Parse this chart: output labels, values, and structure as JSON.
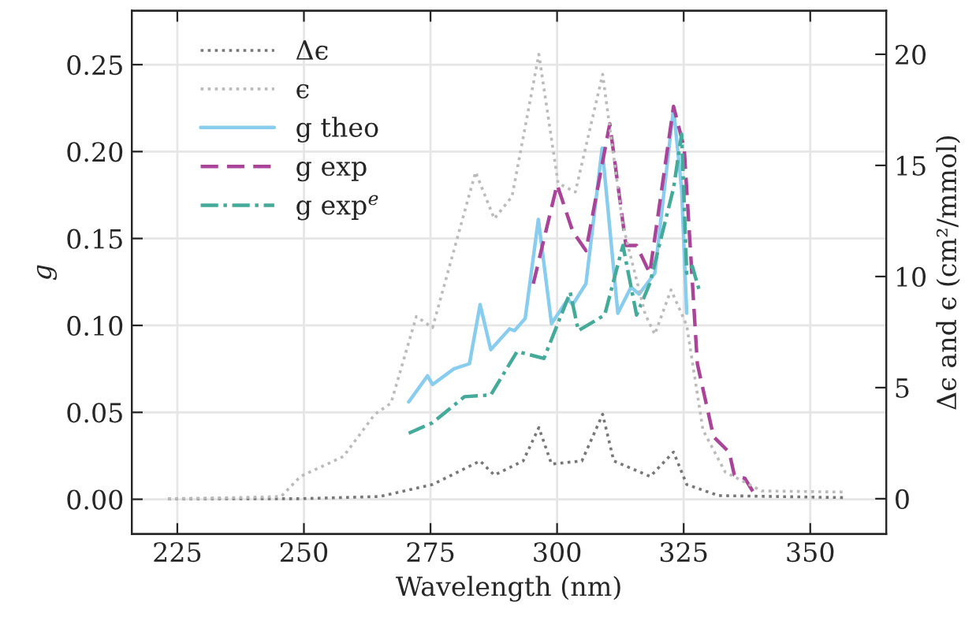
{
  "chart_data": {
    "type": "line",
    "xlabel": "Wavelength (nm)",
    "ylabel": "g",
    "y2label": "Δϵ and ϵ (cm²/mmol)",
    "xlim": [
      216,
      365
    ],
    "xticks": [
      225,
      250,
      275,
      300,
      325,
      350
    ],
    "ylim": [
      -0.02,
      0.281
    ],
    "yticks": [
      {
        "value": 0,
        "label": "0.00"
      },
      {
        "value": 0.05,
        "label": "0.05"
      },
      {
        "value": 0.1,
        "label": "0.10"
      },
      {
        "value": 0.15,
        "label": "0.15"
      },
      {
        "value": 0.2,
        "label": "0.20"
      },
      {
        "value": 0.25,
        "label": "0.25"
      }
    ],
    "y2lim": [
      -1.59,
      21.96
    ],
    "y2ticks": [
      0,
      5,
      10,
      15,
      20
    ],
    "grid": true,
    "legend": "top left",
    "series": [
      {
        "name": "Δϵ",
        "color": "#777777",
        "axis": "y2",
        "line_style": "dotted",
        "x": [
          223.2,
          249.3,
          265,
          275.4,
          284.8,
          287.6,
          293.3,
          296.4,
          298.9,
          304.9,
          309,
          311.2,
          318.4,
          323,
          325.6,
          331.9,
          356.7
        ],
        "values": [
          0,
          0,
          0.1,
          0.64,
          1.7,
          1.06,
          1.7,
          3.2,
          1.56,
          1.7,
          3.8,
          1.7,
          1.0,
          2.1,
          0.64,
          0.14,
          0.05
        ]
      },
      {
        "name": "ϵ",
        "color": "#bbbbbb",
        "axis": "y2",
        "line_style": "dotted",
        "x": [
          223.2,
          236.7,
          245.5,
          249.3,
          257.8,
          264,
          267.2,
          272.2,
          275.4,
          283.9,
          287.6,
          291.1,
          296.4,
          300.2,
          303.6,
          309,
          313,
          317.4,
          319.3,
          322.5,
          325.6,
          328.8,
          333.2,
          340.4,
          356.7
        ],
        "values": [
          0,
          0.05,
          0.1,
          1.0,
          1.9,
          3.8,
          4.3,
          8.2,
          7.7,
          14.7,
          12.6,
          13.6,
          20.0,
          14.2,
          13.8,
          19.1,
          12.3,
          8.3,
          7.4,
          9.4,
          7.8,
          3.1,
          1.2,
          0.35,
          0.3
        ]
      },
      {
        "name": "g theo",
        "color": "#88ccee",
        "line_style": "solid",
        "x": [
          270.7,
          274.4,
          275.4,
          279.6,
          282.7,
          284.8,
          286.9,
          290.6,
          291.6,
          293.7,
          296.3,
          298.9,
          302.1,
          303.1,
          305.7,
          308.9,
          312,
          314.6,
          316.2,
          319.3,
          323,
          324.6,
          325.6
        ],
        "values": [
          0.056,
          0.071,
          0.066,
          0.075,
          0.078,
          0.112,
          0.086,
          0.098,
          0.097,
          0.104,
          0.161,
          0.101,
          0.115,
          0.112,
          0.124,
          0.202,
          0.107,
          0.122,
          0.118,
          0.13,
          0.225,
          0.178,
          0.107
        ]
      },
      {
        "name": "g exp",
        "color": "#aa4499",
        "line_style": "dashed",
        "x": [
          295.3,
          300,
          303.1,
          305.7,
          310.4,
          313.6,
          315.7,
          318.3,
          323,
          325.1,
          327.7,
          330.9,
          334,
          335,
          337.1,
          339.2
        ],
        "values": [
          0.124,
          0.181,
          0.154,
          0.143,
          0.216,
          0.146,
          0.146,
          0.13,
          0.226,
          0.202,
          0.078,
          0.036,
          0.027,
          0.014,
          0.012,
          0.002
        ]
      },
      {
        "name": "g exp$^{e}$",
        "color": "#44aa99",
        "line_style": "dashdot",
        "x": [
          270.7,
          275.4,
          281.7,
          286.9,
          292.1,
          297.4,
          302.6,
          304.2,
          309.4,
          313,
          315.7,
          318.3,
          323,
          324.6,
          325.6,
          326.7,
          328.2
        ],
        "values": [
          0.038,
          0.044,
          0.059,
          0.06,
          0.085,
          0.081,
          0.119,
          0.097,
          0.106,
          0.146,
          0.106,
          0.124,
          0.179,
          0.21,
          0.13,
          0.134,
          0.119
        ]
      }
    ]
  }
}
